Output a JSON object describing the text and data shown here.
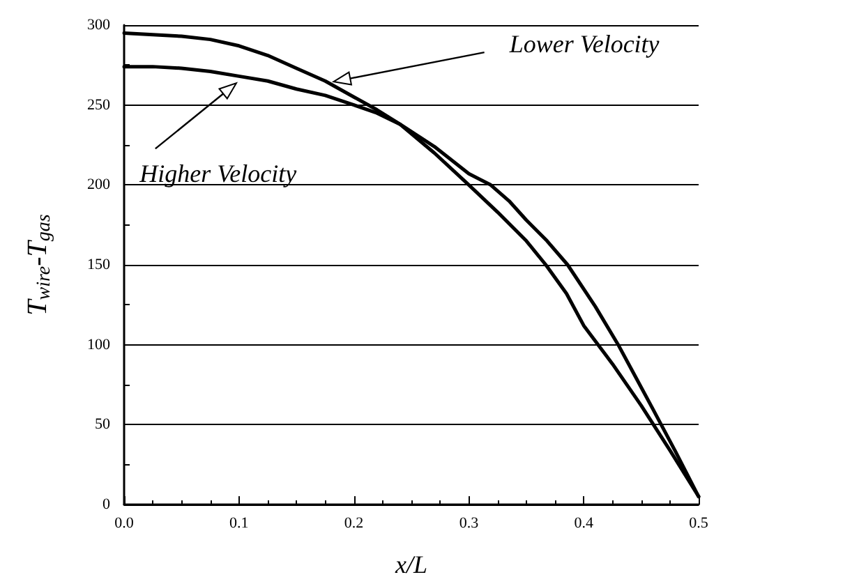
{
  "chart_data": {
    "type": "line",
    "xlabel": "x/L",
    "ylabel": "T$_{wire}$-T$_{gas}$",
    "xlim": [
      0,
      0.5
    ],
    "xticks": [
      {
        "value": 0,
        "label": "0.0"
      },
      {
        "value": 0.1,
        "label": "0.1"
      },
      {
        "value": 0.2,
        "label": "0.2"
      },
      {
        "value": 0.3,
        "label": "0.3"
      },
      {
        "value": 0.4,
        "label": "0.4"
      },
      {
        "value": 0.5,
        "label": "0.5"
      }
    ],
    "ylim": [
      0,
      300
    ],
    "yticks": [
      0,
      50,
      100,
      150,
      200,
      250,
      300
    ],
    "annotations": [
      "Lower Velocity",
      "Higher Velocity"
    ],
    "grid": "y",
    "marker": "none",
    "line_style": "solid",
    "series": [
      {
        "color": "#000000",
        "x": [
          0,
          0.025,
          0.05,
          0.075,
          0.1,
          0.125,
          0.15,
          0.175,
          0.2,
          0.22,
          0.24,
          0.27,
          0.3,
          0.325,
          0.35,
          0.367,
          0.385,
          0.4,
          0.425,
          0.45,
          0.475,
          0.5
        ],
        "values": [
          295,
          294,
          293,
          291,
          287,
          281,
          273,
          265,
          255,
          247,
          238,
          220,
          200,
          183,
          165,
          150,
          132,
          112,
          88,
          62,
          34,
          5
        ]
      },
      {
        "color": "#000000",
        "x": [
          0,
          0.025,
          0.05,
          0.075,
          0.1,
          0.125,
          0.15,
          0.175,
          0.2,
          0.22,
          0.24,
          0.27,
          0.3,
          0.319,
          0.335,
          0.35,
          0.368,
          0.386,
          0.41,
          0.43,
          0.445,
          0.46,
          0.48,
          0.5
        ],
        "values": [
          274,
          274,
          273,
          271,
          268,
          265,
          260,
          256,
          250,
          245,
          238,
          224,
          207,
          200,
          190,
          178,
          165,
          150,
          124,
          100,
          80,
          60,
          33,
          5
        ]
      }
    ]
  }
}
